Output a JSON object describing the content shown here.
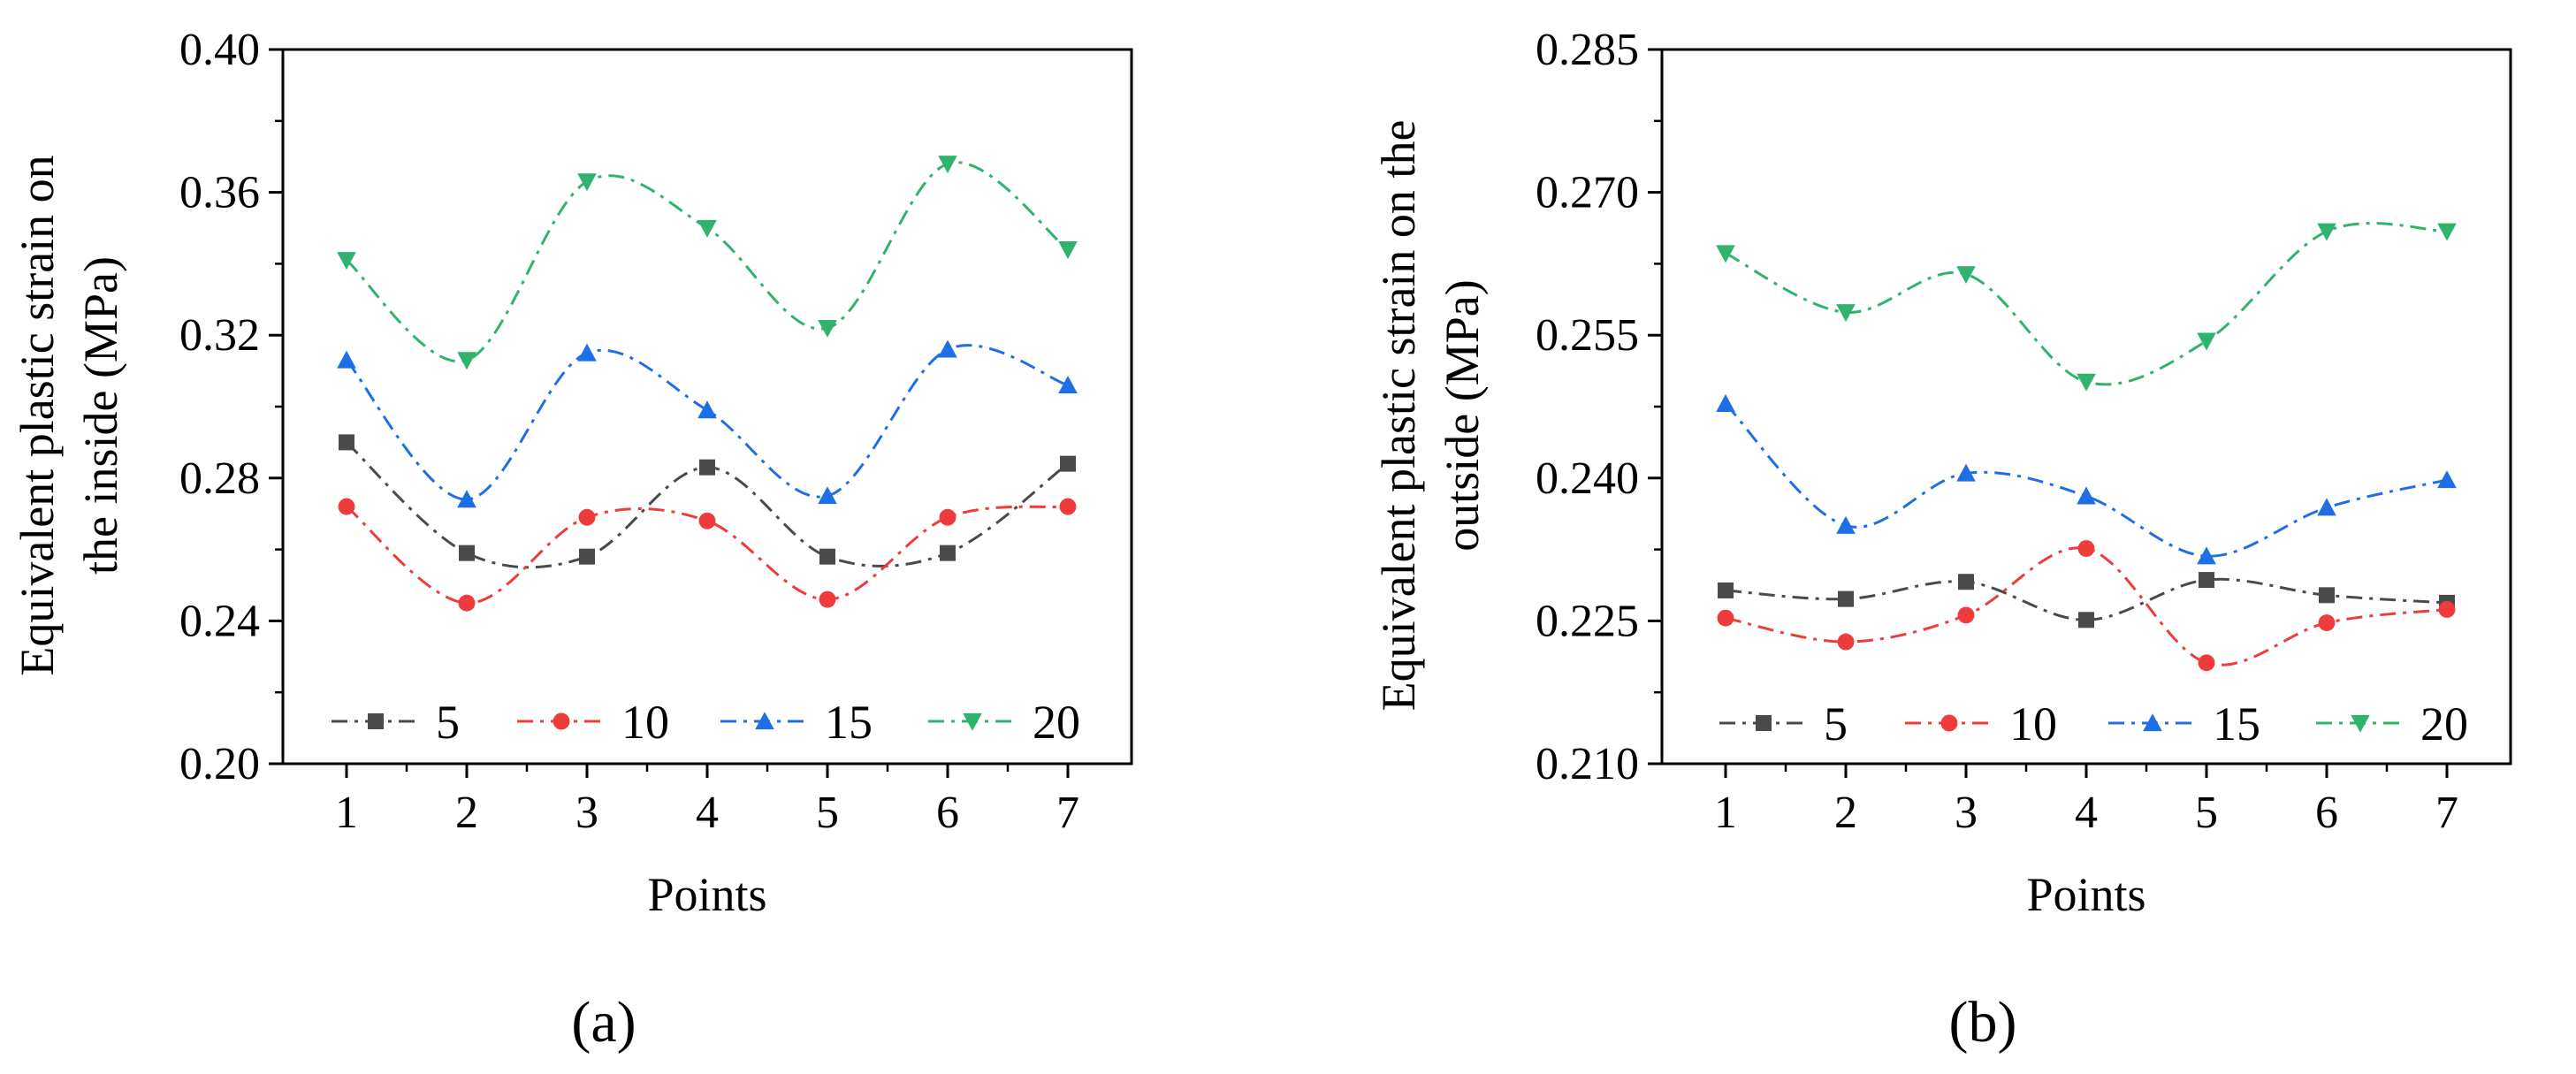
{
  "chart_data": [
    {
      "type": "line",
      "panel_id": "a",
      "caption": "(a)",
      "title": "",
      "xlabel": "Points",
      "ylabel_lines": [
        "Equivalent plastic strain on",
        "the inside (MPa)"
      ],
      "categories": [
        1,
        2,
        3,
        4,
        5,
        6,
        7
      ],
      "xtick_labels": [
        "1",
        "2",
        "3",
        "4",
        "5",
        "6",
        "7"
      ],
      "ylim": [
        0.2,
        0.4
      ],
      "yticks": [
        0.2,
        0.24,
        0.28,
        0.32,
        0.36,
        0.4
      ],
      "ytick_labels": [
        "0.20",
        "0.24",
        "0.28",
        "0.32",
        "0.36",
        "0.40"
      ],
      "legend_position": "bottom",
      "series": [
        {
          "name": "5",
          "marker": "square",
          "color": "#4a4a4a",
          "values": [
            0.29,
            0.259,
            0.258,
            0.283,
            0.258,
            0.259,
            0.284
          ]
        },
        {
          "name": "10",
          "marker": "circle",
          "color": "#ee3b3b",
          "values": [
            0.272,
            0.245,
            0.269,
            0.268,
            0.246,
            0.269,
            0.272
          ]
        },
        {
          "name": "15",
          "marker": "triangle-up",
          "color": "#1e6fe6",
          "values": [
            0.313,
            0.274,
            0.315,
            0.299,
            0.275,
            0.316,
            0.306
          ]
        },
        {
          "name": "20",
          "marker": "triangle-down",
          "color": "#2fb36d",
          "values": [
            0.341,
            0.313,
            0.363,
            0.35,
            0.322,
            0.368,
            0.344
          ]
        }
      ]
    },
    {
      "type": "line",
      "panel_id": "b",
      "caption": "(b)",
      "title": "",
      "xlabel": "Points",
      "ylabel_lines": [
        "Equivalent plastic strain on the",
        "outside (MPa)"
      ],
      "categories": [
        1,
        2,
        3,
        4,
        5,
        6,
        7
      ],
      "xtick_labels": [
        "1",
        "2",
        "3",
        "4",
        "5",
        "6",
        "7"
      ],
      "ylim": [
        0.21,
        0.285
      ],
      "yticks": [
        0.21,
        0.225,
        0.24,
        0.255,
        0.27,
        0.285
      ],
      "ytick_labels": [
        "0.210",
        "0.225",
        "0.240",
        "0.255",
        "0.270",
        "0.285"
      ],
      "legend_position": "bottom",
      "series": [
        {
          "name": "5",
          "marker": "square",
          "color": "#4a4a4a",
          "values": [
            0.2282,
            0.2273,
            0.2291,
            0.2251,
            0.2293,
            0.2277,
            0.2269
          ]
        },
        {
          "name": "10",
          "marker": "circle",
          "color": "#ee3b3b",
          "values": [
            0.2253,
            0.2228,
            0.2256,
            0.2326,
            0.2206,
            0.2248,
            0.2262
          ]
        },
        {
          "name": "15",
          "marker": "triangle-up",
          "color": "#1e6fe6",
          "values": [
            0.2478,
            0.235,
            0.2405,
            0.2381,
            0.2318,
            0.2369,
            0.2398
          ]
        },
        {
          "name": "20",
          "marker": "triangle-down",
          "color": "#2fb36d",
          "values": [
            0.2636,
            0.2574,
            0.2614,
            0.2501,
            0.2544,
            0.2659,
            0.2659
          ]
        }
      ]
    }
  ]
}
